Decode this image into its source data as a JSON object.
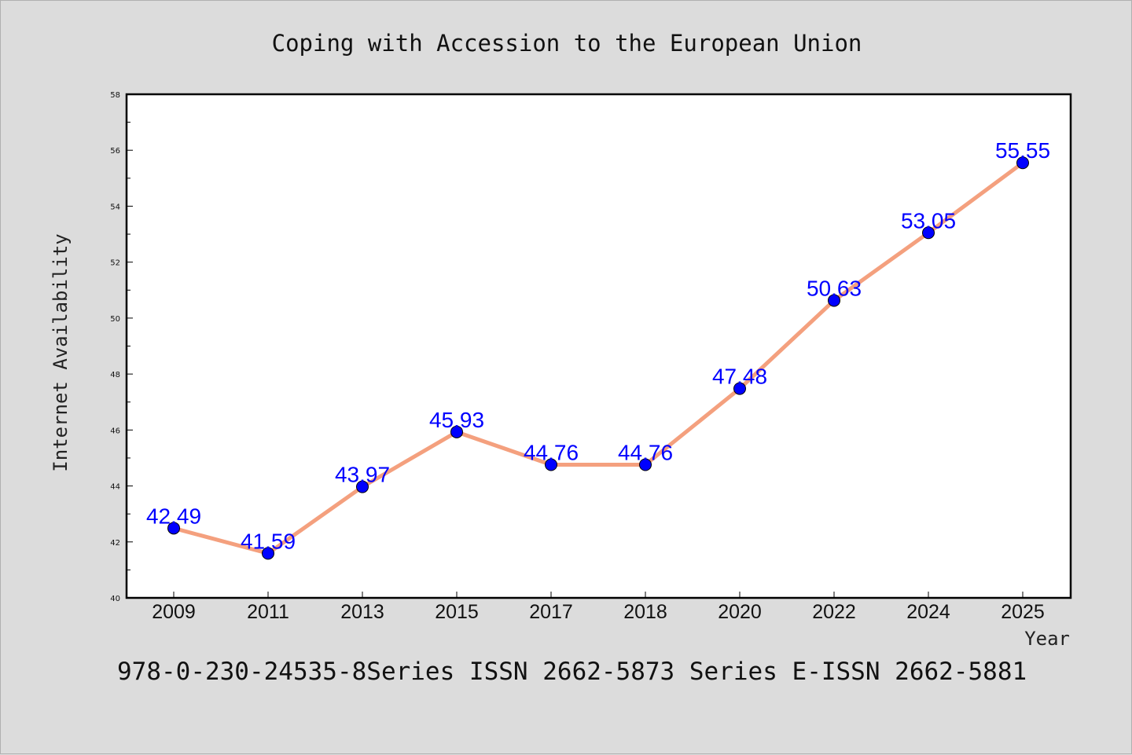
{
  "chart_data": {
    "type": "line",
    "title": "Coping with Accession to the European Union",
    "xlabel": "Year",
    "ylabel": "Internet Availability",
    "categories": [
      "2009",
      "2011",
      "2013",
      "2015",
      "2017",
      "2018",
      "2020",
      "2022",
      "2024",
      "2025"
    ],
    "series": [
      {
        "values": [
          42.49,
          41.59,
          43.97,
          45.93,
          44.76,
          44.76,
          47.48,
          50.63,
          53.05,
          55.55
        ],
        "labels": [
          "42.49",
          "41.59",
          "43.97",
          "45.93",
          "44.76",
          "44.76",
          "47.48",
          "50.63",
          "53.05",
          "55.55"
        ]
      }
    ],
    "ylim": [
      40,
      58
    ],
    "yticks": [
      "40",
      "42",
      "44",
      "46",
      "48",
      "50",
      "52",
      "54",
      "56",
      "58"
    ],
    "grid": false,
    "legend": "none",
    "line_color": "#f4a07e",
    "marker_color": "#0000ff",
    "label_color": "#0000ff"
  },
  "footer": {
    "text": "978-0-230-24535-8Series ISSN 2662-5873 Series E-ISSN 2662-5881"
  }
}
